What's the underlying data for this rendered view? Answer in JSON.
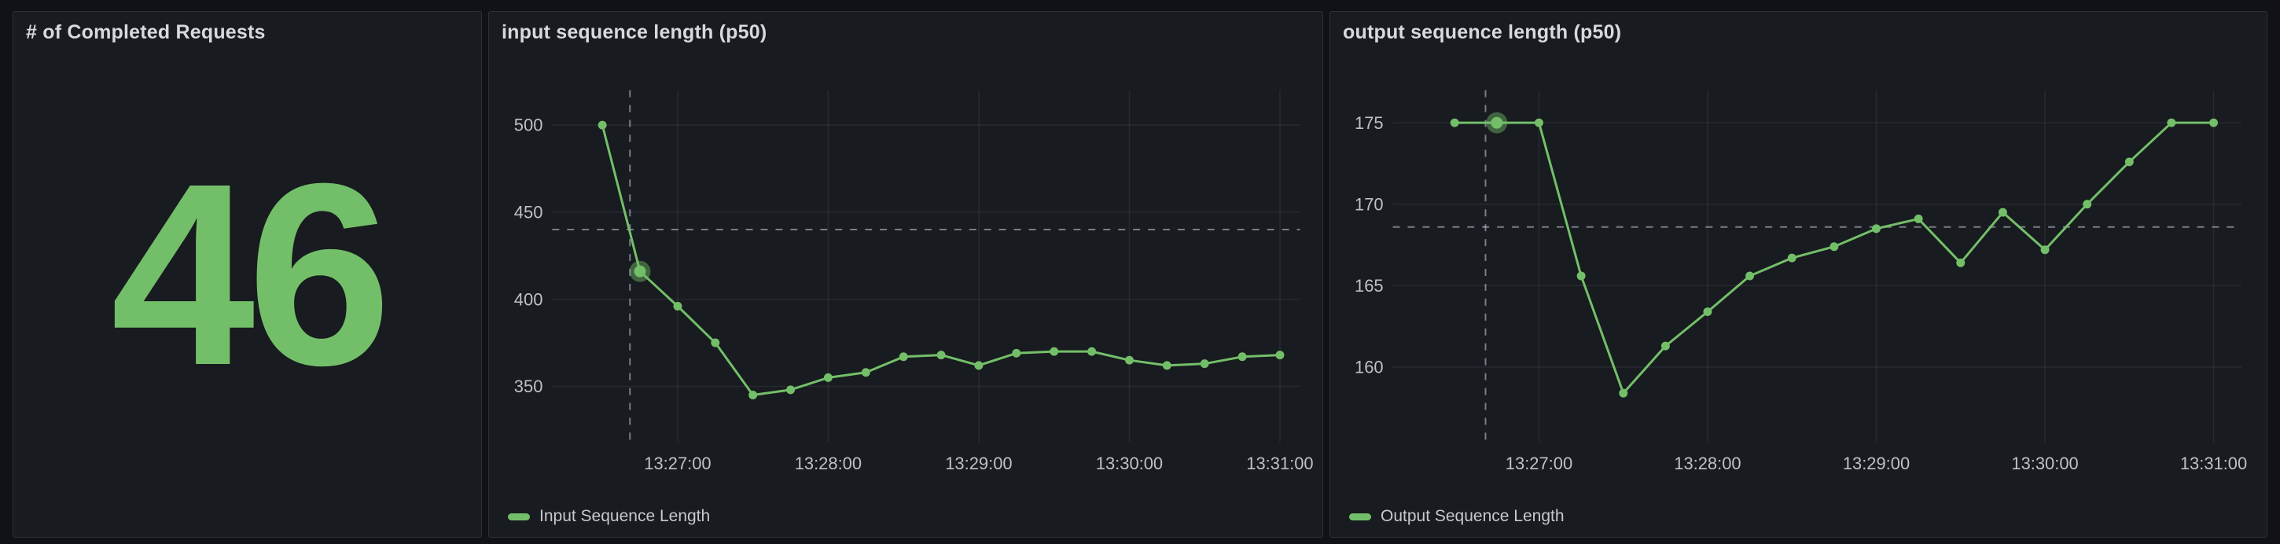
{
  "theme": {
    "page_bg": "#111217",
    "panel_bg": "#181b1f",
    "panel_border": "rgba(204,204,220,0.12)",
    "title_color": "#d8d9dd",
    "tick_color": "#bfc0c8",
    "legend_color": "#c7c8cf",
    "grid_color": "rgba(204,204,220,0.09)",
    "crosshair_color": "rgba(204,204,220,0.55)",
    "green": "#73BF69",
    "hover_halo": "rgba(115,191,105,0.45)"
  },
  "panels": {
    "stat": {
      "title": "# of Completed Requests",
      "value": "46"
    },
    "input": {
      "title": "input sequence length (p50)",
      "legend": "Input Sequence Length"
    },
    "output": {
      "title": "output sequence length (p50)",
      "legend": "Output Sequence Length"
    }
  },
  "chart_data": [
    {
      "type": "stat",
      "title": "# of Completed Requests",
      "value": 46,
      "color": "#73BF69"
    },
    {
      "type": "line",
      "title": "input sequence length (p50)",
      "x": [
        "13:26:30",
        "13:26:45",
        "13:27:00",
        "13:27:15",
        "13:27:30",
        "13:27:45",
        "13:28:00",
        "13:28:15",
        "13:28:30",
        "13:28:45",
        "13:29:00",
        "13:29:15",
        "13:29:30",
        "13:29:45",
        "13:30:00",
        "13:30:15",
        "13:30:30",
        "13:30:45",
        "13:31:00"
      ],
      "series": [
        {
          "name": "Input Sequence Length",
          "color": "#73BF69",
          "values": [
            500,
            416,
            396,
            375,
            345,
            348,
            355,
            358,
            367,
            368,
            362,
            369,
            370,
            370,
            365,
            362,
            363,
            367,
            368
          ]
        }
      ],
      "x_ticks": [
        "13:27:00",
        "13:28:00",
        "13:29:00",
        "13:30:00",
        "13:31:00"
      ],
      "y_ticks": [
        350,
        400,
        450,
        500
      ],
      "ylim": [
        318,
        520
      ],
      "xlim": [
        "13:26:10",
        "13:31:08"
      ],
      "grid": true,
      "legend_position": "bottom",
      "crosshair": {
        "x": "13:26:41",
        "y": 440
      },
      "hover_index": 1
    },
    {
      "type": "line",
      "title": "output sequence length (p50)",
      "x": [
        "13:26:30",
        "13:26:45",
        "13:27:00",
        "13:27:15",
        "13:27:30",
        "13:27:45",
        "13:28:00",
        "13:28:15",
        "13:28:30",
        "13:28:45",
        "13:29:00",
        "13:29:15",
        "13:29:30",
        "13:29:45",
        "13:30:00",
        "13:30:15",
        "13:30:30",
        "13:30:45",
        "13:31:00"
      ],
      "series": [
        {
          "name": "Output Sequence Length",
          "color": "#73BF69",
          "values": [
            175,
            175,
            175,
            165.6,
            158.4,
            161.3,
            163.4,
            165.6,
            166.7,
            167.4,
            168.5,
            169.1,
            166.4,
            169.5,
            167.2,
            170,
            172.6,
            175,
            175
          ]
        }
      ],
      "x_ticks": [
        "13:27:00",
        "13:28:00",
        "13:29:00",
        "13:30:00",
        "13:31:00"
      ],
      "y_ticks": [
        160,
        165,
        170,
        175
      ],
      "ylim": [
        155.4,
        177
      ],
      "xlim": [
        "13:26:08",
        "13:31:10"
      ],
      "grid": true,
      "legend_position": "bottom",
      "crosshair": {
        "x": "13:26:41",
        "y": 168.6
      },
      "hover_index": 1
    }
  ]
}
